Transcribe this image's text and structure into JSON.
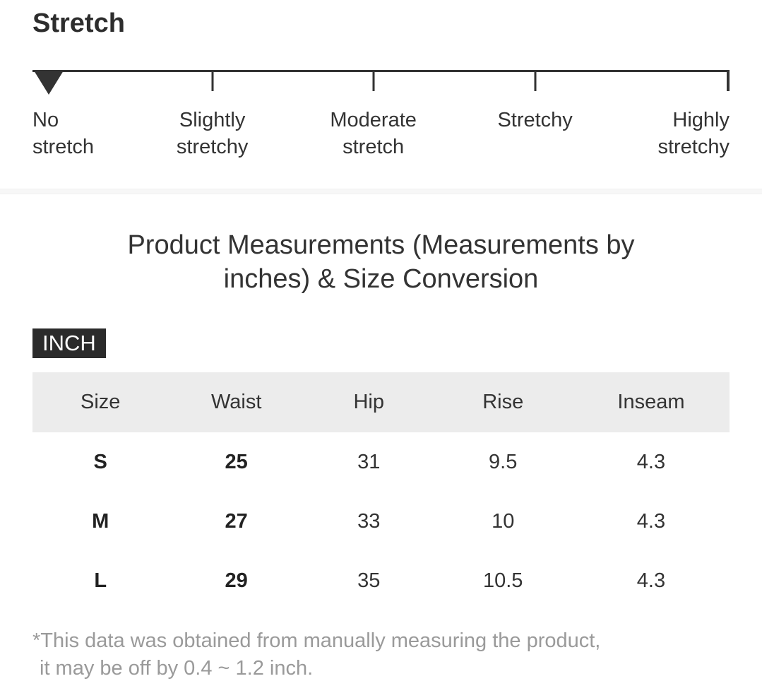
{
  "stretch_section": {
    "heading": "Stretch",
    "scale": {
      "levels": [
        "No stretch",
        "Slightly stretchy",
        "Moderate stretch",
        "Stretchy",
        "Highly stretchy"
      ],
      "selected_level": "No stretch",
      "selected_index": 0
    }
  },
  "measurements_section": {
    "title": "Product Measurements (Measurements by inches) & Size Conversion",
    "unit_badge": "INCH",
    "table": {
      "headers": [
        "Size",
        "Waist",
        "Hip",
        "Rise",
        "Inseam"
      ],
      "rows": [
        {
          "cells": [
            "S",
            "25",
            "31",
            "9.5",
            "4.3"
          ]
        },
        {
          "cells": [
            "M",
            "27",
            "33",
            "10",
            "4.3"
          ]
        },
        {
          "cells": [
            "L",
            "29",
            "35",
            "10.5",
            "4.3"
          ]
        }
      ]
    },
    "note": {
      "line1": "*This data was obtained from manually measuring the product,",
      "line2": "it may be off by 0.4 ~ 1.2 inch."
    }
  },
  "colors": {
    "text_dark": "#2d2d2d",
    "text_body": "#333333",
    "scale_line": "#333333",
    "table_header_bg": "#ececec",
    "badge_bg": "#2b2b2b",
    "badge_text": "#ffffff",
    "note_text": "#9a9a9a",
    "divider_bg": "#f7f7f7"
  }
}
